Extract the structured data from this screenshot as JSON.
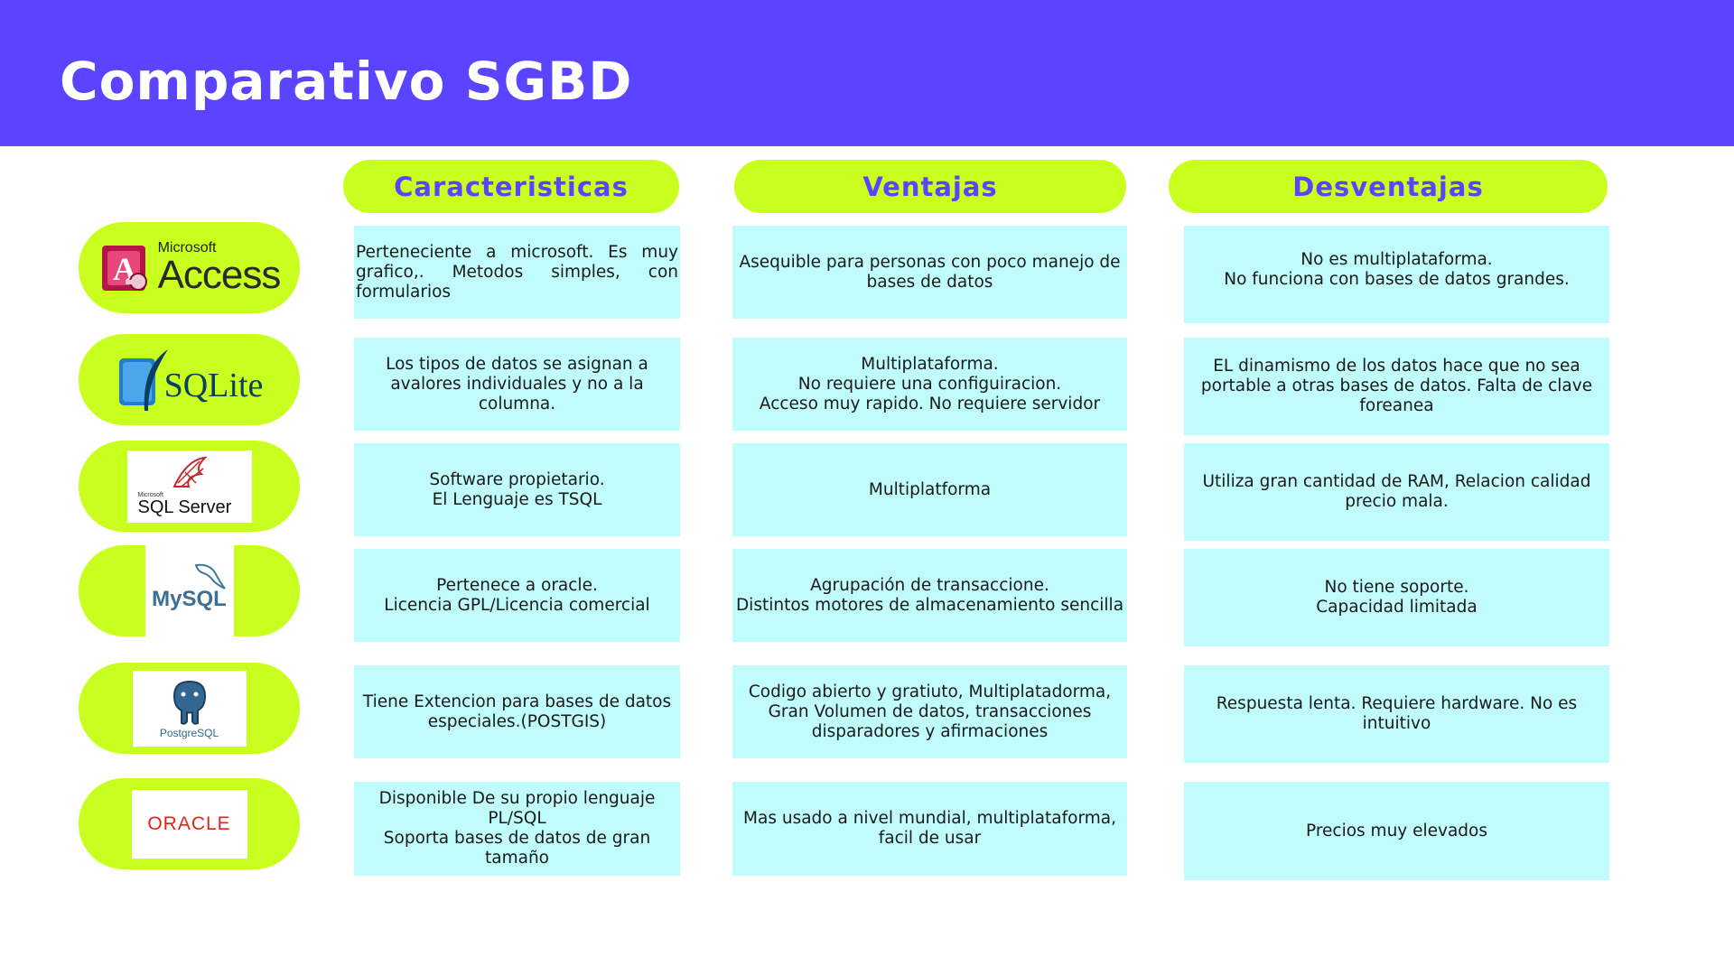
{
  "title": "Comparativo SGBD",
  "columns": [
    "Caracteristicas",
    "Ventajas",
    "Desventajas"
  ],
  "logos": {
    "access": {
      "brand": "Microsoft",
      "name": "Access"
    },
    "sqlite": {
      "name": "SQLite"
    },
    "sqlserver": {
      "brand": "Microsoft",
      "name": "SQL Server"
    },
    "mysql": {
      "name": "MySQL"
    },
    "postgresql": {
      "name": "PostgreSQL"
    },
    "oracle": {
      "name": "ORACLE"
    }
  },
  "rows": [
    {
      "caracteristicas": "Perteneciente a microsoft. Es muy grafico,. Metodos simples, con formularios",
      "ventajas": "Asequible para personas con poco manejo de bases de datos",
      "desventajas": "No es multiplataforma.\nNo funciona con bases de datos grandes."
    },
    {
      "caracteristicas": "Los tipos de datos se asignan a avalores individuales y no a la columna.",
      "ventajas": "Multiplataforma.\nNo requiere una configuiracion.\nAcceso muy rapido. No requiere servidor",
      "desventajas": "EL dinamismo de los datos hace que no sea portable a otras bases de datos. Falta de clave foreanea"
    },
    {
      "caracteristicas": "Software propietario.\nEl Lenguaje es TSQL",
      "ventajas": "Multiplatforma",
      "desventajas": "Utiliza gran cantidad de RAM, Relacion calidad precio mala."
    },
    {
      "caracteristicas": "Pertenece a oracle.\nLicencia GPL/Licencia comercial",
      "ventajas": "Agrupación de transaccione.\nDistintos motores de almacenamiento sencilla",
      "desventajas": "No tiene soporte.\nCapacidad limitada"
    },
    {
      "caracteristicas": "Tiene Extencion para bases de datos especiales.(POSTGIS)",
      "ventajas": "Codigo abierto y gratiuto, Multiplatadorma, Gran Volumen de datos, transacciones disparadores y afirmaciones",
      "desventajas": "Respuesta lenta. Requiere hardware. No es intuitivo"
    },
    {
      "caracteristicas": "Disponible De su propio lenguaje PL/SQL\nSoporta bases de datos de gran tamaño",
      "ventajas": "Mas usado a nivel mundial, multiplataforma, facil de usar",
      "desventajas": "Precios muy elevados"
    }
  ],
  "colors": {
    "header": "#5b44ff",
    "accent": "#c8ff1e",
    "cell": "#bffcfb"
  }
}
